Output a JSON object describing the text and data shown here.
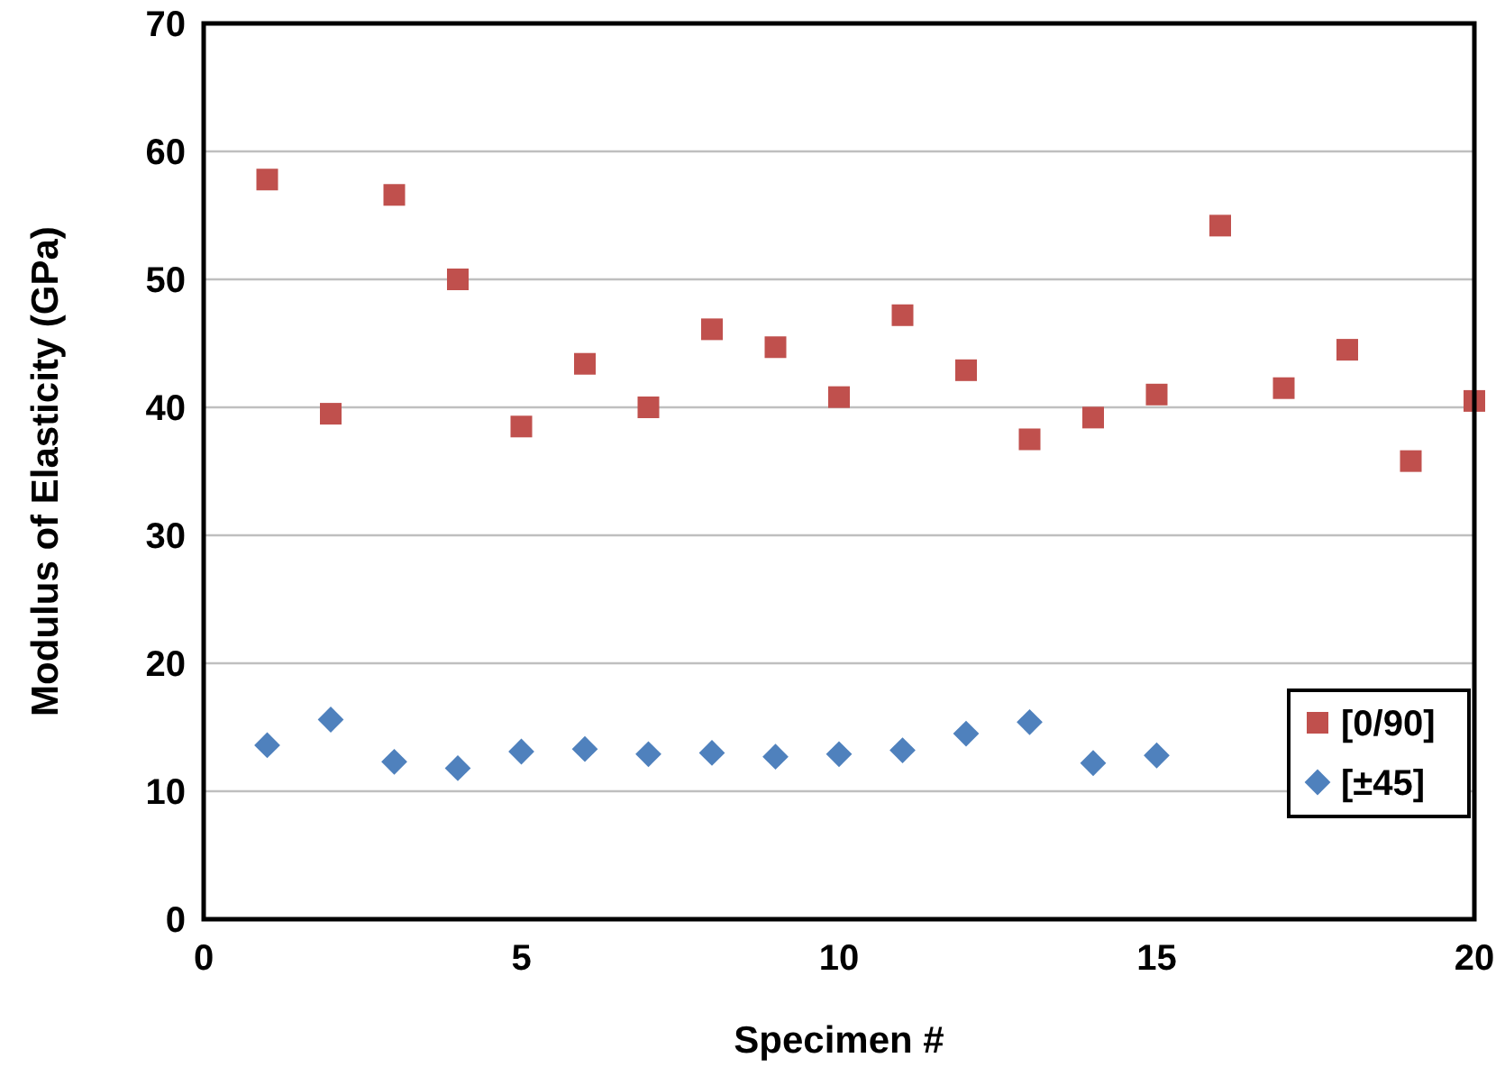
{
  "chart_data": {
    "type": "scatter",
    "xlabel": "Specimen #",
    "ylabel": "Modulus of Elasticity (GPa)",
    "xlim": [
      0,
      20
    ],
    "xticks": [
      0,
      5,
      10,
      15,
      20
    ],
    "ylim": [
      0,
      70
    ],
    "yticks": [
      0,
      10,
      20,
      30,
      40,
      50,
      60,
      70
    ],
    "grid": "y",
    "legend": "right",
    "series": [
      {
        "name": "[0/90]",
        "color": "#c0504d",
        "marker": "square",
        "x": [
          1,
          2,
          3,
          4,
          5,
          6,
          7,
          8,
          9,
          10,
          11,
          12,
          13,
          14,
          15,
          16,
          17,
          18,
          19,
          20
        ],
        "values": [
          57.8,
          39.5,
          56.6,
          50,
          38.5,
          43.4,
          40,
          46.1,
          44.7,
          40.8,
          47.2,
          42.9,
          37.5,
          39.2,
          41,
          54.2,
          41.5,
          44.5,
          35.8,
          40.5
        ]
      },
      {
        "name": "[±45]",
        "color": "#4f81bd",
        "marker": "diamond",
        "x": [
          1,
          2,
          3,
          4,
          5,
          6,
          7,
          8,
          9,
          10,
          11,
          12,
          13,
          14,
          15
        ],
        "values": [
          13.6,
          15.6,
          12.3,
          11.8,
          13.1,
          13.3,
          12.9,
          13,
          12.7,
          12.9,
          13.2,
          14.5,
          15.4,
          12.2,
          12.8
        ]
      }
    ]
  }
}
